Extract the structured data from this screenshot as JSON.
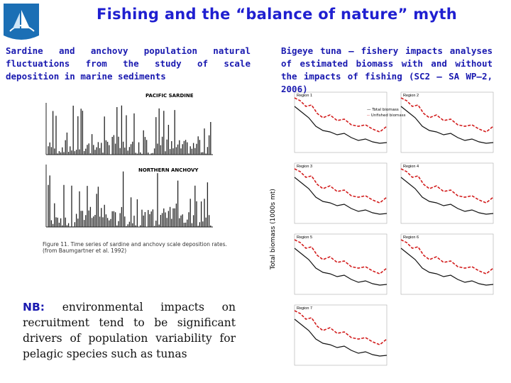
{
  "title": "Fishing and the “balance of nature” myth",
  "left": {
    "description": "Sardine and anchovy population natural fluctuations from the study of scale deposition in marine sediments",
    "figure": {
      "panels": [
        "PACIFIC SARDINE",
        "NORTHERN ANCHOVY"
      ],
      "caption": "Figure 11. Time series of sardine and anchovy scale deposition rates. (from Baumgartner et al. 1992)"
    }
  },
  "nb": {
    "label": "NB:",
    "text": "environmental impacts on recruitment tend to be significant drivers of population variability for pelagic species such as tunas"
  },
  "right": {
    "description": "Bigeye tuna – fishery impacts analyses of estimated biomass with and without the impacts of fishing (SC2 – SA WP–2, 2006)",
    "figure": {
      "y_label": "Total biomass (1000s mt)",
      "legend": [
        "Total biomass",
        "Unfished biomass"
      ],
      "regions": [
        "Region 1",
        "Region 2",
        "Region 3",
        "Region 4",
        "Region 5",
        "Region 6",
        "Region 7"
      ]
    }
  }
}
